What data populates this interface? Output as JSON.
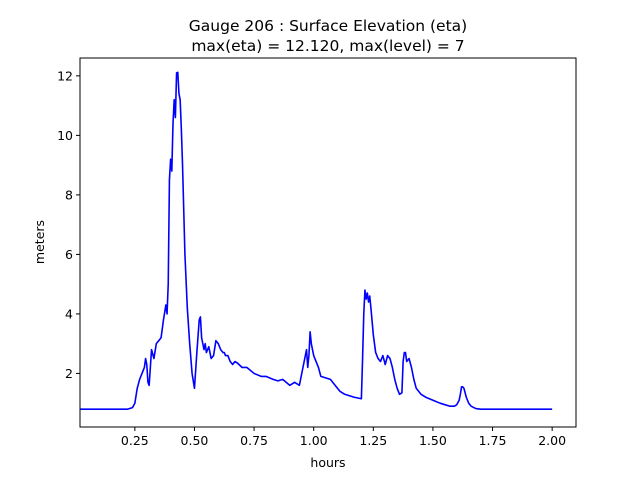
{
  "chart_data": {
    "type": "line",
    "title_line1": "Gauge 206 : Surface Elevation (eta)",
    "title_line2": "max(eta) =  12.120,    max(level) = 7",
    "xlabel": "hours",
    "ylabel": "meters",
    "xlim": [
      0.02,
      2.1
    ],
    "ylim": [
      0.2,
      12.6
    ],
    "xticks": [
      0.25,
      0.5,
      0.75,
      1.0,
      1.25,
      1.5,
      1.75,
      2.0
    ],
    "xtick_labels": [
      "0.25",
      "0.50",
      "0.75",
      "1.00",
      "1.25",
      "1.50",
      "1.75",
      "2.00"
    ],
    "yticks": [
      2,
      4,
      6,
      8,
      10,
      12
    ],
    "ytick_labels": [
      "2",
      "4",
      "6",
      "8",
      "10",
      "12"
    ],
    "grid": false,
    "series": [
      {
        "color": "#0000ff",
        "x": [
          0.02,
          0.22,
          0.24,
          0.25,
          0.26,
          0.27,
          0.28,
          0.29,
          0.295,
          0.3,
          0.305,
          0.31,
          0.315,
          0.32,
          0.33,
          0.34,
          0.35,
          0.36,
          0.37,
          0.38,
          0.385,
          0.39,
          0.395,
          0.4,
          0.405,
          0.41,
          0.415,
          0.42,
          0.425,
          0.43,
          0.435,
          0.44,
          0.445,
          0.45,
          0.455,
          0.46,
          0.47,
          0.48,
          0.49,
          0.5,
          0.51,
          0.52,
          0.525,
          0.53,
          0.54,
          0.545,
          0.55,
          0.555,
          0.56,
          0.57,
          0.58,
          0.59,
          0.6,
          0.61,
          0.62,
          0.625,
          0.63,
          0.64,
          0.65,
          0.66,
          0.67,
          0.68,
          0.7,
          0.72,
          0.75,
          0.78,
          0.8,
          0.83,
          0.85,
          0.87,
          0.9,
          0.92,
          0.94,
          0.96,
          0.97,
          0.975,
          0.98,
          0.985,
          0.99,
          1.0,
          1.01,
          1.02,
          1.03,
          1.05,
          1.07,
          1.09,
          1.11,
          1.13,
          1.15,
          1.17,
          1.2,
          1.205,
          1.21,
          1.215,
          1.22,
          1.225,
          1.23,
          1.235,
          1.24,
          1.25,
          1.26,
          1.27,
          1.28,
          1.29,
          1.3,
          1.31,
          1.32,
          1.33,
          1.34,
          1.35,
          1.36,
          1.37,
          1.375,
          1.38,
          1.385,
          1.39,
          1.4,
          1.41,
          1.42,
          1.43,
          1.45,
          1.47,
          1.5,
          1.53,
          1.55,
          1.57,
          1.59,
          1.6,
          1.61,
          1.615,
          1.62,
          1.625,
          1.63,
          1.64,
          1.65,
          1.66,
          1.68,
          1.7,
          1.75,
          2.0
        ],
        "y": [
          0.8,
          0.8,
          0.85,
          1.0,
          1.5,
          1.8,
          2.0,
          2.2,
          2.5,
          2.3,
          1.7,
          1.6,
          2.2,
          2.8,
          2.5,
          3.0,
          3.1,
          3.2,
          3.8,
          4.3,
          4.0,
          5.0,
          8.5,
          9.2,
          8.8,
          10.4,
          11.2,
          10.6,
          12.1,
          12.12,
          11.4,
          11.2,
          10.2,
          9.0,
          7.5,
          6.0,
          4.2,
          3.0,
          2.0,
          1.5,
          2.7,
          3.8,
          3.9,
          3.2,
          2.8,
          3.0,
          2.7,
          2.8,
          2.9,
          2.5,
          2.6,
          3.1,
          3.0,
          2.8,
          2.7,
          2.7,
          2.6,
          2.6,
          2.4,
          2.3,
          2.4,
          2.35,
          2.2,
          2.2,
          2.0,
          1.9,
          1.9,
          1.8,
          1.75,
          1.8,
          1.6,
          1.7,
          1.6,
          2.4,
          2.8,
          2.2,
          2.6,
          3.4,
          3.0,
          2.6,
          2.4,
          2.2,
          1.9,
          1.85,
          1.8,
          1.6,
          1.4,
          1.3,
          1.25,
          1.2,
          1.15,
          2.5,
          4.0,
          4.8,
          4.5,
          4.7,
          4.4,
          4.6,
          4.2,
          3.3,
          2.7,
          2.5,
          2.4,
          2.6,
          2.3,
          2.6,
          2.5,
          2.2,
          1.8,
          1.5,
          1.3,
          1.35,
          2.4,
          2.7,
          2.7,
          2.4,
          2.5,
          2.2,
          1.8,
          1.5,
          1.3,
          1.2,
          1.1,
          1.0,
          0.95,
          0.9,
          0.9,
          0.95,
          1.1,
          1.3,
          1.55,
          1.55,
          1.5,
          1.2,
          1.0,
          0.9,
          0.82,
          0.8,
          0.8,
          0.8
        ]
      }
    ]
  }
}
